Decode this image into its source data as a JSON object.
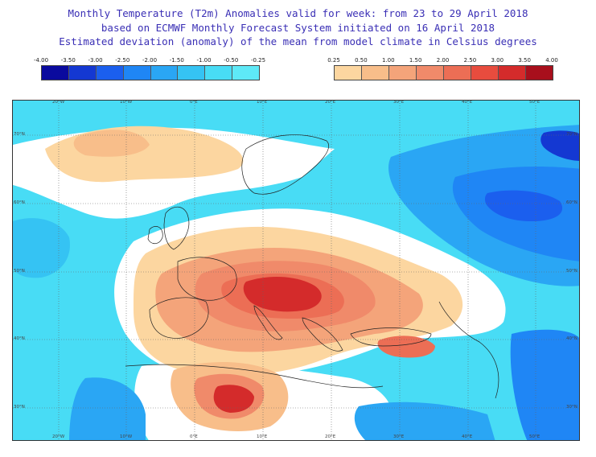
{
  "header": {
    "line1": "Monthly Temperature (T2m) Anomalies valid for week: from 23 to 29 April 2018",
    "line2": "based on ECMWF Monthly Forecast System initiated on 16 April 2018",
    "line3": "Estimated deviation (anomaly) of the mean from model climate in Celsius degrees"
  },
  "legend": {
    "negative": {
      "ticks": [
        "-4.00",
        "-3.50",
        "-3.00",
        "-2.50",
        "-2.00",
        "-1.50",
        "-1.00",
        "-0.50",
        "-0.25"
      ],
      "colors": [
        "#0a0a9e",
        "#1438d2",
        "#1b5fee",
        "#1f86f5",
        "#2aa6f4",
        "#35c3f3",
        "#48dcf5",
        "#5ee9f7"
      ]
    },
    "positive": {
      "ticks": [
        "0.25",
        "0.50",
        "1.00",
        "1.50",
        "2.00",
        "2.50",
        "3.00",
        "3.50",
        "4.00"
      ],
      "colors": [
        "#fcd6a0",
        "#f8be8a",
        "#f4a47a",
        "#f08a6a",
        "#ec6e55",
        "#e84c3e",
        "#d42b2b",
        "#a80f1c"
      ]
    }
  },
  "map": {
    "lon_labels_top": [
      "20°W",
      "10°W",
      "0°E",
      "10°E",
      "20°E",
      "30°E",
      "40°E",
      "50°E"
    ],
    "lon_labels_bottom": [
      "20°W",
      "10°W",
      "0°E",
      "10°E",
      "20°E",
      "30°E",
      "40°E",
      "50°E"
    ],
    "lat_labels_left": [
      "70°N",
      "60°N",
      "50°N",
      "40°N",
      "30°N"
    ],
    "lat_labels_right": [
      "70°N",
      "60°N",
      "50°N",
      "40°N",
      "30°N"
    ]
  }
}
